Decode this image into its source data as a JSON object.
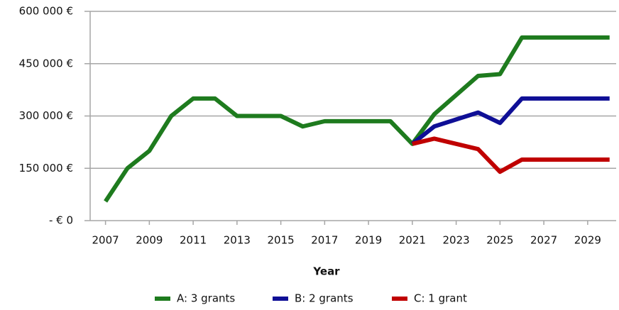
{
  "chart_data": {
    "type": "line",
    "x_label": "Year",
    "x": [
      2007,
      2008,
      2009,
      2010,
      2011,
      2012,
      2013,
      2014,
      2015,
      2016,
      2017,
      2018,
      2019,
      2020,
      2021,
      2022,
      2023,
      2024,
      2025,
      2026,
      2027,
      2028,
      2029,
      2030
    ],
    "series": [
      {
        "name": "A: 3 grants",
        "color": "#1e7b1e",
        "values": [
          55000,
          150000,
          200000,
          300000,
          350000,
          350000,
          300000,
          300000,
          300000,
          270000,
          285000,
          285000,
          285000,
          285000,
          220000,
          305000,
          360000,
          415000,
          420000,
          525000,
          525000,
          525000,
          525000,
          525000
        ]
      },
      {
        "name": "B: 2 grants",
        "color": "#0f0f96",
        "values": [
          null,
          null,
          null,
          null,
          null,
          null,
          null,
          null,
          null,
          null,
          null,
          null,
          null,
          null,
          220000,
          270000,
          290000,
          310000,
          280000,
          350000,
          350000,
          350000,
          350000,
          350000
        ]
      },
      {
        "name": "C: 1 grant",
        "color": "#c00000",
        "values": [
          null,
          null,
          null,
          null,
          null,
          null,
          null,
          null,
          null,
          null,
          null,
          null,
          null,
          null,
          220000,
          235000,
          220000,
          205000,
          140000,
          175000,
          175000,
          175000,
          175000,
          175000
        ]
      }
    ],
    "xlim": [
      2006.3,
      2030.3
    ],
    "xticks": [
      2007,
      2009,
      2011,
      2013,
      2015,
      2017,
      2019,
      2021,
      2023,
      2025,
      2027,
      2029
    ],
    "ylim": [
      0,
      600000
    ],
    "yticks": [
      {
        "value": 0,
        "label": "- € 0"
      },
      {
        "value": 150000,
        "label": "150 000 €"
      },
      {
        "value": 300000,
        "label": "300 000 €"
      },
      {
        "value": 450000,
        "label": "450 000 €"
      },
      {
        "value": 600000,
        "label": "600 000 €"
      }
    ],
    "grid": true,
    "legend": "bottom"
  }
}
